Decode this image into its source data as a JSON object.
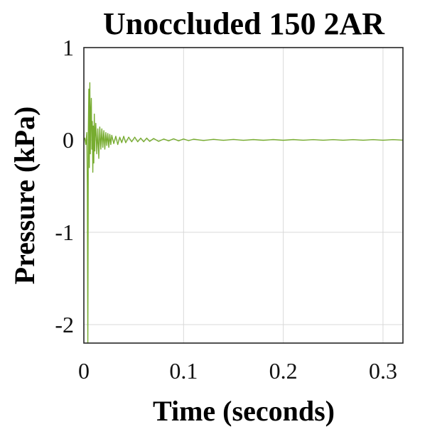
{
  "chart_data": {
    "type": "line",
    "title": "Unoccluded 150 2AR",
    "xlabel": "Time (seconds)",
    "ylabel": "Pressure (kPa)",
    "xlim": [
      0,
      0.32
    ],
    "ylim": [
      -2.2,
      1
    ],
    "xticks": [
      0,
      0.1,
      0.2,
      0.3
    ],
    "xtick_labels": [
      "0",
      "0.1",
      "0.2",
      "0.3"
    ],
    "yticks": [
      1,
      0,
      -1,
      -2
    ],
    "ytick_labels": [
      "1",
      "0",
      "-1",
      "-2"
    ],
    "grid": true,
    "series": [
      {
        "color": "#77ac30",
        "x": [
          0,
          0.001,
          0.002,
          0.003,
          0.0035,
          0.004,
          0.0045,
          0.005,
          0.0055,
          0.006,
          0.0065,
          0.007,
          0.0075,
          0.008,
          0.0085,
          0.009,
          0.0095,
          0.01,
          0.0105,
          0.011,
          0.0115,
          0.012,
          0.013,
          0.014,
          0.015,
          0.016,
          0.017,
          0.018,
          0.019,
          0.02,
          0.021,
          0.022,
          0.023,
          0.024,
          0.025,
          0.026,
          0.027,
          0.028,
          0.03,
          0.032,
          0.034,
          0.036,
          0.038,
          0.04,
          0.042,
          0.045,
          0.048,
          0.051,
          0.054,
          0.057,
          0.06,
          0.063,
          0.066,
          0.07,
          0.075,
          0.08,
          0.085,
          0.09,
          0.095,
          0.1,
          0.105,
          0.11,
          0.12,
          0.13,
          0.14,
          0.15,
          0.16,
          0.17,
          0.18,
          0.19,
          0.2,
          0.21,
          0.22,
          0.23,
          0.24,
          0.25,
          0.26,
          0.27,
          0.28,
          0.29,
          0.3,
          0.31,
          0.32
        ],
        "y": [
          0.0,
          0.02,
          -0.05,
          0.08,
          -0.5,
          -2.2,
          0.1,
          0.55,
          -0.3,
          0.62,
          -0.15,
          0.3,
          0.45,
          -0.1,
          0.2,
          -0.35,
          0.15,
          -0.25,
          0.28,
          -0.12,
          0.1,
          0.18,
          -0.15,
          0.12,
          -0.2,
          0.14,
          -0.1,
          0.12,
          -0.08,
          0.1,
          -0.1,
          0.08,
          -0.06,
          0.07,
          -0.08,
          0.06,
          -0.05,
          0.05,
          -0.04,
          0.04,
          -0.05,
          0.03,
          -0.03,
          0.04,
          -0.03,
          0.03,
          -0.02,
          0.03,
          -0.02,
          0.02,
          -0.02,
          0.02,
          -0.015,
          0.015,
          -0.015,
          0.01,
          -0.01,
          0.012,
          -0.01,
          0.01,
          -0.008,
          0.008,
          -0.006,
          0.006,
          -0.005,
          0.005,
          -0.005,
          0.004,
          -0.004,
          0.004,
          -0.004,
          0.004,
          -0.003,
          0.003,
          -0.003,
          0.003,
          -0.003,
          0.003,
          -0.003,
          0.003,
          -0.003,
          0.003,
          -0.002
        ]
      }
    ]
  }
}
